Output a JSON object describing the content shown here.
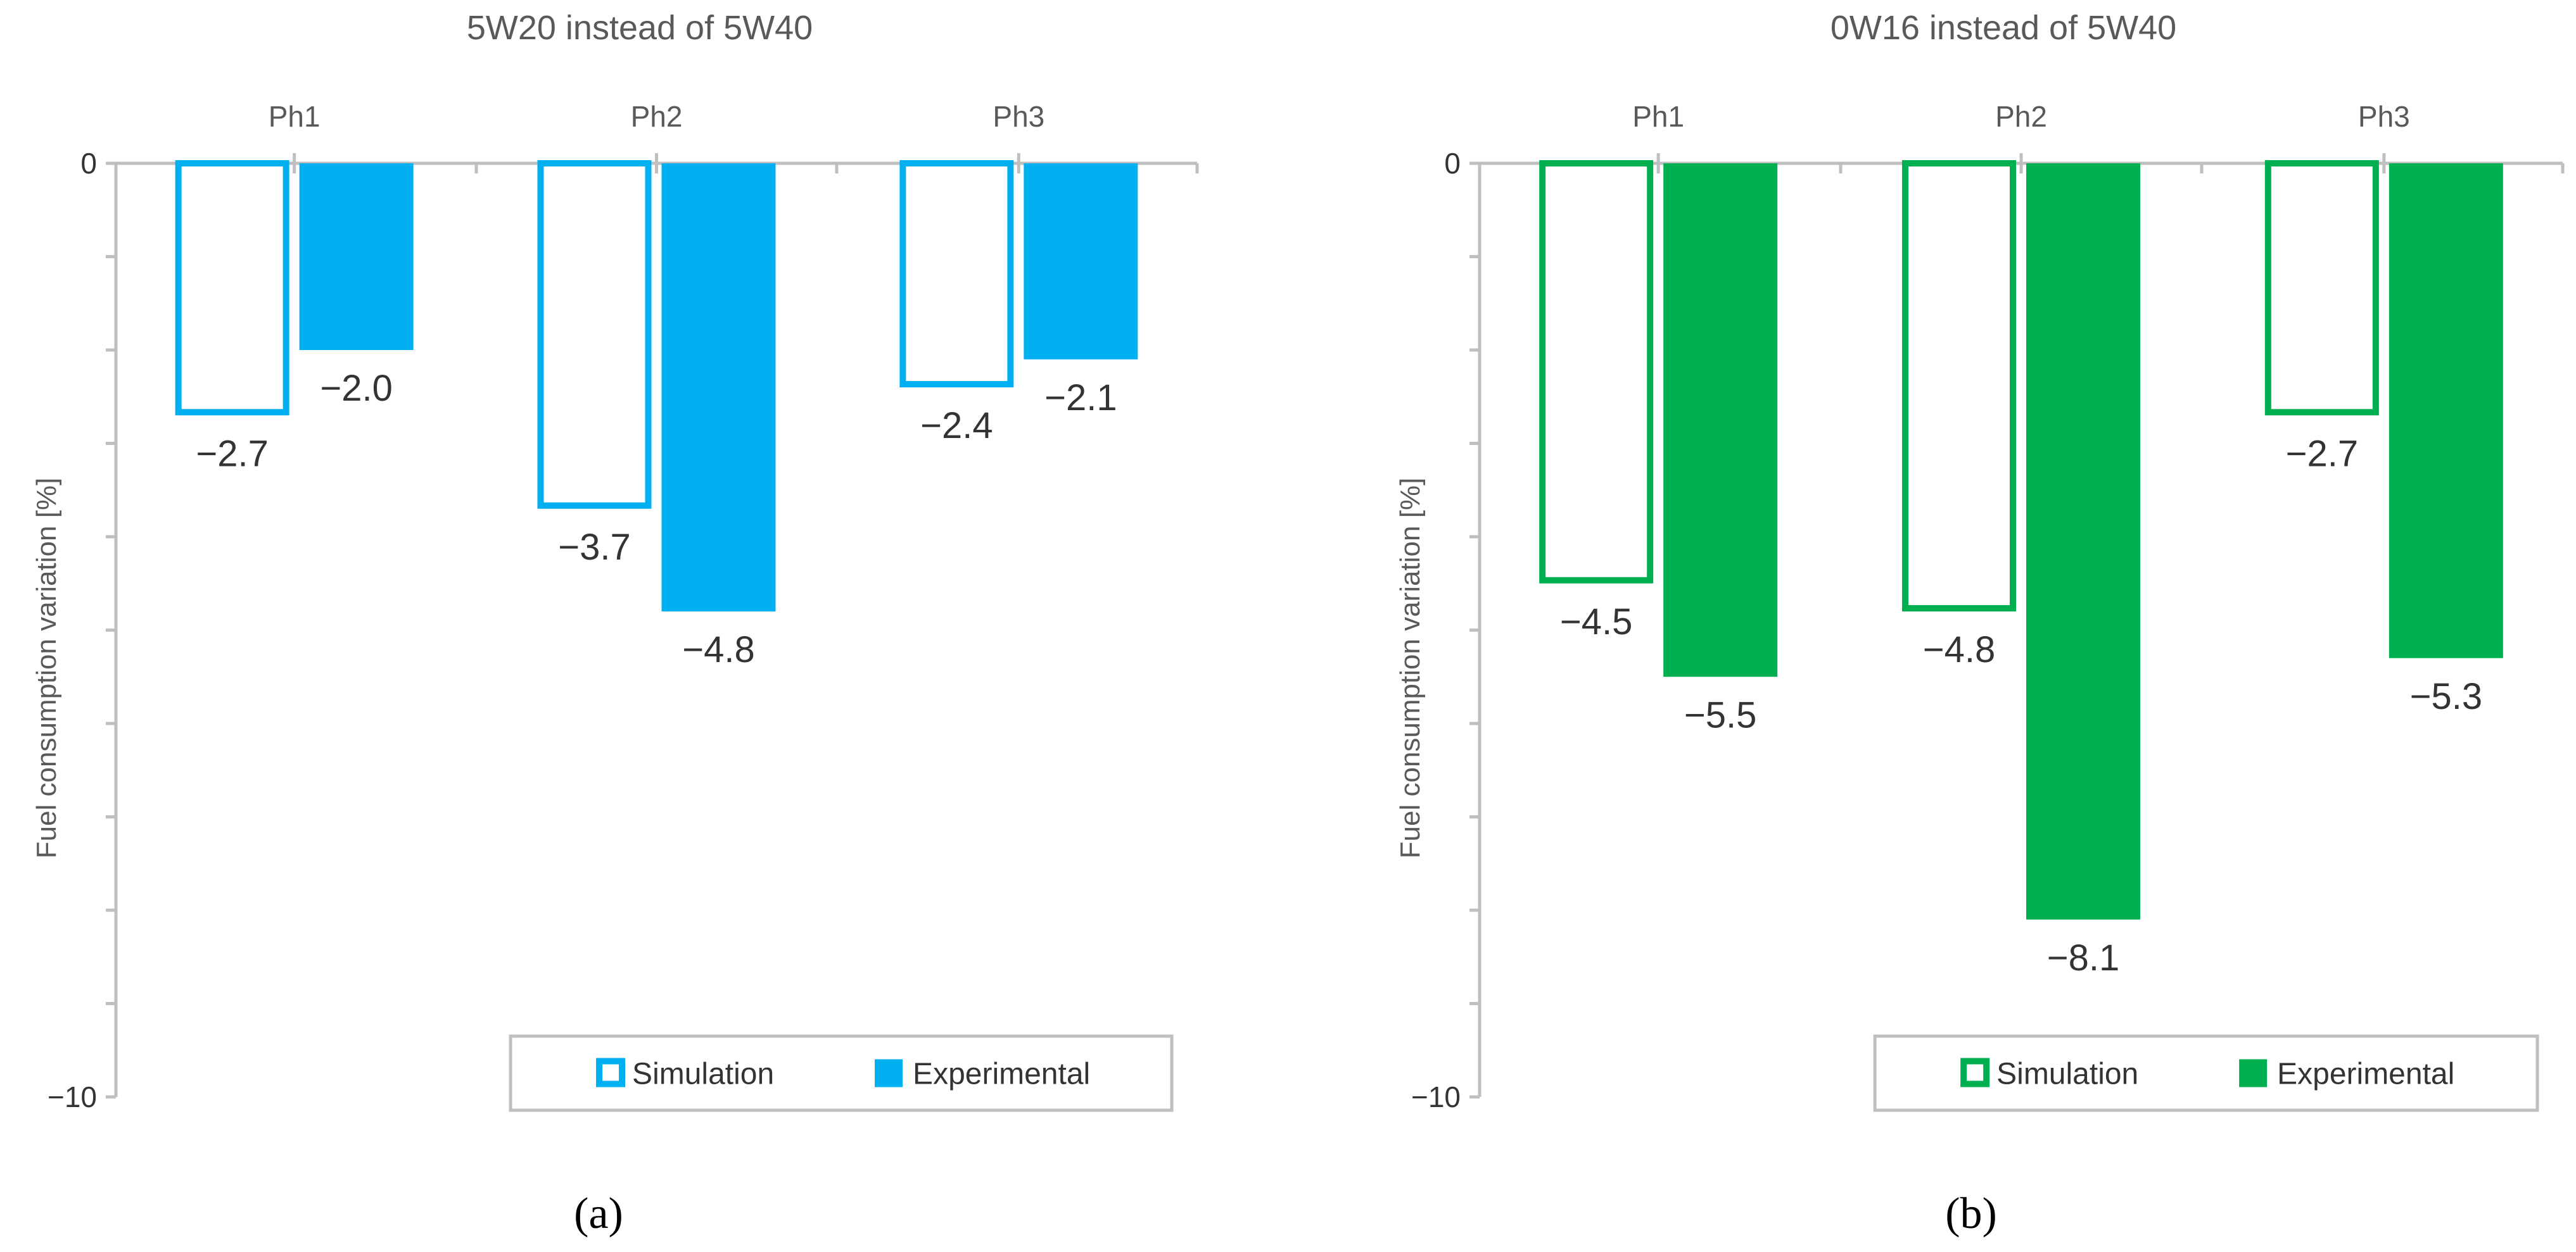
{
  "chart_data": [
    {
      "type": "bar",
      "panel": "(a)",
      "title": "5W20 instead of 5W40",
      "ylabel": "Fuel consumption variation  [%]",
      "xlabel": "",
      "categories": [
        "Ph1",
        "Ph2",
        "Ph3"
      ],
      "ylim": [
        -10,
        0
      ],
      "ytick_labels": [
        "0",
        "−10"
      ],
      "color": "#00b0f0",
      "series": [
        {
          "name": "Simulation",
          "style": "outline",
          "values": [
            -2.7,
            -3.7,
            -2.4
          ],
          "labels": [
            "−2.7",
            "−3.7",
            "−2.4"
          ]
        },
        {
          "name": "Experimental",
          "style": "filled",
          "values": [
            -2.0,
            -4.8,
            -2.1
          ],
          "labels": [
            "−2.0",
            "−4.8",
            "−2.1"
          ]
        }
      ],
      "legend": "bottom-right"
    },
    {
      "type": "bar",
      "panel": "(b)",
      "title": "0W16 instead of 5W40",
      "ylabel": "Fuel consumption variation  [%]",
      "xlabel": "",
      "categories": [
        "Ph1",
        "Ph2",
        "Ph3"
      ],
      "ylim": [
        -10,
        0
      ],
      "ytick_labels": [
        "0",
        "−10"
      ],
      "color": "#00b050",
      "series": [
        {
          "name": "Simulation",
          "style": "outline",
          "values": [
            -4.5,
            -4.8,
            -2.7
          ],
          "labels": [
            "−4.5",
            "−4.8",
            "−2.7"
          ]
        },
        {
          "name": "Experimental",
          "style": "filled",
          "values": [
            -5.5,
            -8.1,
            -5.3
          ],
          "labels": [
            "−5.5",
            "−8.1",
            "−5.3"
          ]
        }
      ],
      "legend": "bottom-right"
    }
  ]
}
